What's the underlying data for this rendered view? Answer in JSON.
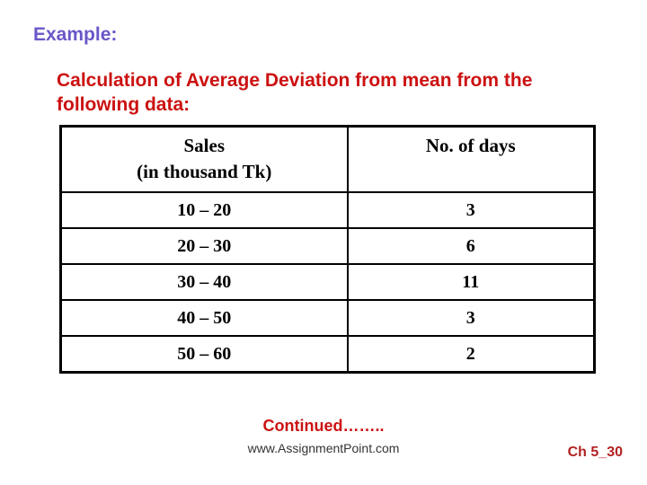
{
  "colors": {
    "example_label": "#6B57C8",
    "title": "#CC1111",
    "continued": "#CC1111",
    "website": "#333333",
    "chapter": "#B22222",
    "table_border": "#000000",
    "background": "#ffffff"
  },
  "slide": {
    "example_label": "Example:",
    "title_line1": "Calculation of Average Deviation from mean from the",
    "title_line2": "following data:"
  },
  "table": {
    "header": {
      "sales_line1": "Sales",
      "sales_line2": "(in thousand Tk)",
      "days": "No. of days"
    },
    "rows": [
      {
        "sales": "10 – 20",
        "days": "3"
      },
      {
        "sales": "20 – 30",
        "days": "6"
      },
      {
        "sales": "30 – 40",
        "days": "11"
      },
      {
        "sales": "40 – 50",
        "days": "3"
      },
      {
        "sales": "50 – 60",
        "days": "2"
      }
    ]
  },
  "footer": {
    "continued": "Continued……..",
    "website": "www.AssignmentPoint.com",
    "chapter": "Ch 5_30"
  }
}
